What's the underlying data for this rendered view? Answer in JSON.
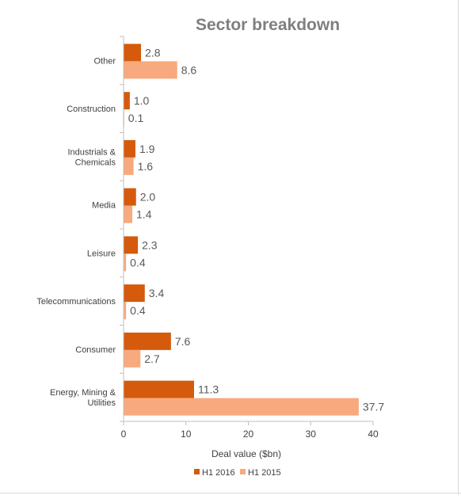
{
  "chart_data": {
    "type": "bar",
    "orientation": "horizontal",
    "title": "Sector breakdown",
    "xlabel": "Deal value ($bn)",
    "ylabel": "",
    "xlim": [
      0,
      40
    ],
    "xticks": [
      0,
      10,
      20,
      30,
      40
    ],
    "grid": false,
    "legend_position": "bottom",
    "categories": [
      [
        "Other"
      ],
      [
        "Construction"
      ],
      [
        "Industrials &",
        "Chemicals"
      ],
      [
        "Media"
      ],
      [
        "Leisure"
      ],
      [
        "Telecommunications"
      ],
      [
        "Consumer"
      ],
      [
        "Energy, Mining &",
        "Utilities"
      ]
    ],
    "series": [
      {
        "name": "H1 2016",
        "color": "#d55a0b",
        "values": [
          2.8,
          1.0,
          1.9,
          2.0,
          2.3,
          3.4,
          7.6,
          11.3
        ],
        "labels": [
          "2.8",
          "1.0",
          "1.9",
          "2.0",
          "2.3",
          "3.4",
          "7.6",
          "11.3"
        ]
      },
      {
        "name": "H1 2015",
        "color": "#f8a97e",
        "values": [
          8.6,
          0.1,
          1.6,
          1.4,
          0.4,
          0.4,
          2.7,
          37.7
        ],
        "labels": [
          "8.6",
          "0.1",
          "1.6",
          "1.4",
          "0.4",
          "0.4",
          "2.7",
          "37.7"
        ]
      }
    ]
  }
}
